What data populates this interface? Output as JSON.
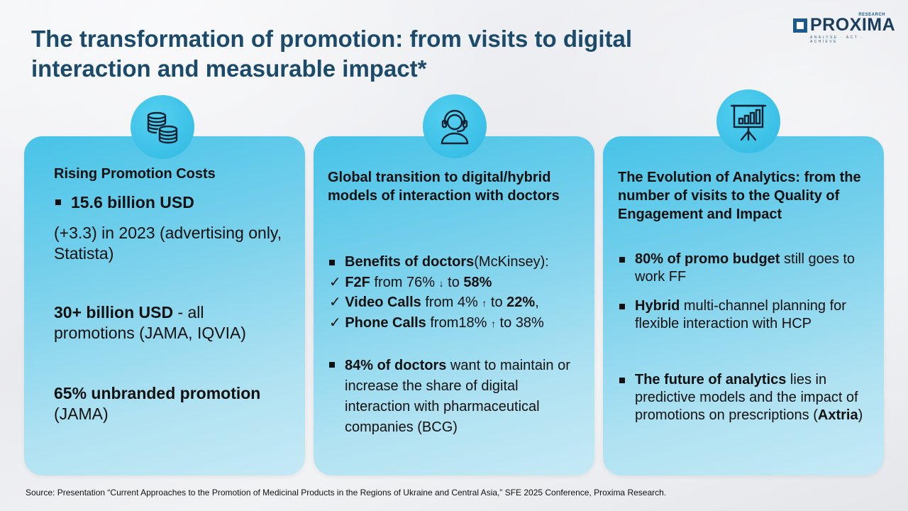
{
  "title": "The transformation of promotion: from visits to digital interaction and measurable impact*",
  "logo": {
    "name": "PROXIMA",
    "research": "RESEARCH",
    "tagline": "ANALYSE · ACT · ACHIEVE"
  },
  "card1": {
    "icon": "coins-icon",
    "heading": "Rising Promotion Costs",
    "bullet1": "15.6 billion USD",
    "line1": "(+3.3) in 2023 (advertising only, Statista)",
    "p2_bold": "30+ billion USD",
    "p2_rest": " - all promotions (JAMA, IQVIA)",
    "p3_bold": "65% unbranded promotion",
    "p3_rest": "(JAMA)"
  },
  "card2": {
    "icon": "headset-user-icon",
    "heading": "Global transition to digital/hybrid models of interaction with doctors",
    "b1_bold": "Benefits of doctors",
    "b1_rest": "(McKinsey):",
    "c1_bold": "F2F",
    "c1_mid": " from 76%",
    "c1_arrow": "↓",
    "c1_to": " to ",
    "c1_val": "58%",
    "c2_bold": "Video Calls",
    "c2_mid": " from 4%",
    "c2_arrow": "↑",
    "c2_to": " to ",
    "c2_val": "22%",
    "c2_end": ",",
    "c3_bold": "Phone Calls",
    "c3_mid": " from18%",
    "c3_arrow": "↑",
    "c3_rest": " to 38%",
    "check": "✓",
    "b2_bold": "84% of doctors",
    "b2_rest": " want to maintain or increase the share of digital interaction with pharmaceutical companies (BCG)"
  },
  "card3": {
    "icon": "presentation-chart-icon",
    "heading": "The Evolution of Analytics: from the number of visits to the Quality of Engagement and Impact",
    "b1_bold": "80% of promo budget",
    "b1_rest": " still goes to work FF",
    "b2_bold": "Hybrid",
    "b2_rest": " multi-channel planning for flexible interaction with HCP",
    "b3_bold": "The future of analytics",
    "b3_rest": " lies in predictive models and the impact of promotions on prescriptions (",
    "b3_src": "Axtria",
    "b3_end": ")"
  },
  "source": "Source: Presentation “Current Approaches to the Promotion of Medicinal Products in the Regions of Ukraine and Central Asia,” SFE 2025 Conference, Proxima Research."
}
